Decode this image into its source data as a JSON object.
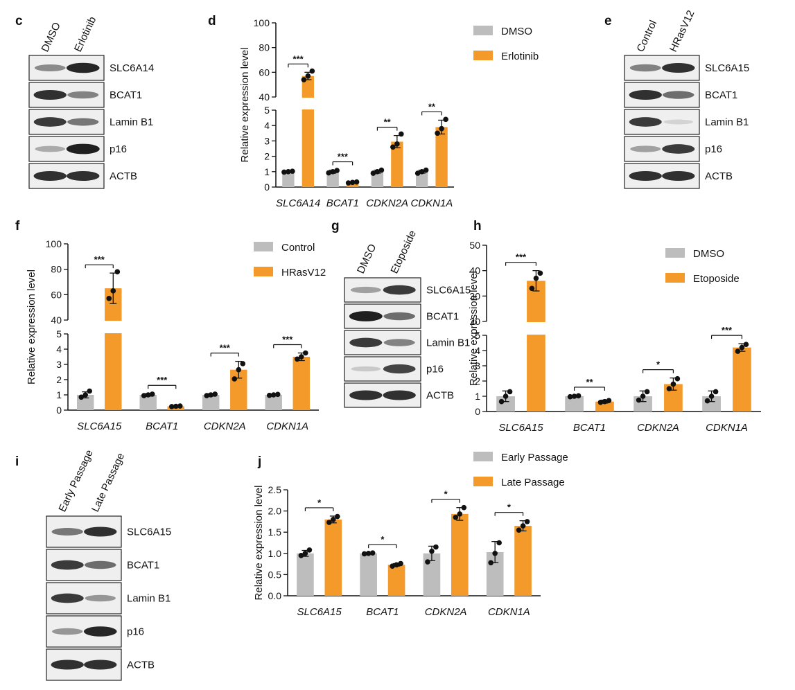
{
  "colors": {
    "control": "#bdbdbd",
    "treatment": "#f39a2b",
    "dot": "#111111",
    "axis": "#111111"
  },
  "blots": [
    {
      "letter": "c",
      "lanes": [
        "DMSO",
        "Erlotinib"
      ],
      "proteins": [
        "SLC6A14",
        "BCAT1",
        "Lamin B1",
        "p16",
        "ACTB"
      ],
      "band_intensity": [
        [
          0.45,
          0.95
        ],
        [
          0.9,
          0.5
        ],
        [
          0.85,
          0.55
        ],
        [
          0.3,
          0.98
        ],
        [
          0.9,
          0.9
        ]
      ]
    },
    {
      "letter": "e",
      "lanes": [
        "Control",
        "HRasV12"
      ],
      "proteins": [
        "SLC6A15",
        "BCAT1",
        "Lamin B1",
        "p16",
        "ACTB"
      ],
      "band_intensity": [
        [
          0.5,
          0.9
        ],
        [
          0.9,
          0.6
        ],
        [
          0.85,
          0.1
        ],
        [
          0.35,
          0.85
        ],
        [
          0.9,
          0.9
        ]
      ]
    },
    {
      "letter": "g",
      "lanes": [
        "DMSO",
        "Etoposide"
      ],
      "proteins": [
        "SLC6A15",
        "BCAT1",
        "Lamin B1",
        "p16",
        "ACTB"
      ],
      "band_intensity": [
        [
          0.35,
          0.85
        ],
        [
          0.98,
          0.6
        ],
        [
          0.85,
          0.5
        ],
        [
          0.15,
          0.8
        ],
        [
          0.9,
          0.9
        ]
      ]
    },
    {
      "letter": "i",
      "lanes": [
        "Early Passage",
        "Late Passage"
      ],
      "proteins": [
        "SLC6A15",
        "BCAT1",
        "Lamin B1",
        "p16",
        "ACTB"
      ],
      "band_intensity": [
        [
          0.55,
          0.9
        ],
        [
          0.85,
          0.6
        ],
        [
          0.85,
          0.4
        ],
        [
          0.4,
          0.95
        ],
        [
          0.9,
          0.9
        ]
      ]
    }
  ],
  "chart_data": [
    {
      "letter": "d",
      "type": "bar",
      "ylabel": "Relative expression level",
      "broken_axis": true,
      "lower_ticks": [
        0,
        1,
        2,
        3,
        4,
        5
      ],
      "upper_ticks": [
        40,
        60,
        80,
        100
      ],
      "categories": [
        "SLC6A14",
        "BCAT1",
        "CDKN2A",
        "CDKN1A"
      ],
      "series": [
        {
          "name": "DMSO",
          "values": [
            1.0,
            1.0,
            1.0,
            1.0
          ],
          "errors": [
            0.05,
            0.1,
            0.1,
            0.1
          ],
          "points": [
            [
              0.97,
              1.0,
              1.03
            ],
            [
              0.92,
              1.0,
              1.08
            ],
            [
              0.9,
              1.0,
              1.1
            ],
            [
              0.9,
              1.0,
              1.1
            ]
          ]
        },
        {
          "name": "Erlotinib",
          "values": [
            57,
            0.3,
            2.95,
            3.9
          ],
          "errors": [
            3,
            0.03,
            0.4,
            0.45
          ],
          "points": [
            [
              54,
              57,
              61
            ],
            [
              0.27,
              0.3,
              0.33
            ],
            [
              2.6,
              2.8,
              3.45
            ],
            [
              3.5,
              3.8,
              4.4
            ]
          ]
        }
      ],
      "significance": [
        "***",
        "***",
        "**",
        "**"
      ]
    },
    {
      "letter": "f",
      "type": "bar",
      "ylabel": "Relative expression level",
      "broken_axis": true,
      "lower_ticks": [
        0,
        1,
        2,
        3,
        4,
        5
      ],
      "upper_ticks": [
        40,
        60,
        80,
        100
      ],
      "categories": [
        "SLC6A15",
        "BCAT1",
        "CDKN2A",
        "CDKN1A"
      ],
      "series": [
        {
          "name": "Control",
          "values": [
            1.0,
            1.0,
            1.0,
            1.0
          ],
          "errors": [
            0.2,
            0.08,
            0.08,
            0.05
          ],
          "points": [
            [
              0.85,
              1.0,
              1.25
            ],
            [
              0.95,
              1.0,
              1.05
            ],
            [
              0.95,
              1.0,
              1.05
            ],
            [
              0.97,
              1.0,
              1.03
            ]
          ]
        },
        {
          "name": "HRasV12",
          "values": [
            65,
            0.25,
            2.65,
            3.5
          ],
          "errors": [
            12,
            0.03,
            0.55,
            0.25
          ],
          "points": [
            [
              57,
              63,
              78
            ],
            [
              0.23,
              0.25,
              0.27
            ],
            [
              2.05,
              2.65,
              3.05
            ],
            [
              3.35,
              3.5,
              3.75
            ]
          ]
        }
      ],
      "significance": [
        "***",
        "***",
        "***",
        "***"
      ]
    },
    {
      "letter": "h",
      "type": "bar",
      "ylabel": "Relative expression level",
      "broken_axis": true,
      "lower_ticks": [
        0,
        1,
        2,
        3,
        4,
        5
      ],
      "upper_ticks": [
        20,
        30,
        40,
        50
      ],
      "categories": [
        "SLC6A15",
        "BCAT1",
        "CDKN2A",
        "CDKN1A"
      ],
      "series": [
        {
          "name": "DMSO",
          "values": [
            1.0,
            1.0,
            1.0,
            1.0
          ],
          "errors": [
            0.35,
            0.05,
            0.35,
            0.35
          ],
          "points": [
            [
              0.65,
              1.0,
              1.3
            ],
            [
              0.97,
              1.0,
              1.03
            ],
            [
              0.75,
              1.0,
              1.3
            ],
            [
              0.7,
              1.0,
              1.3
            ]
          ]
        },
        {
          "name": "Etoposide",
          "values": [
            36,
            0.65,
            1.8,
            4.2
          ],
          "errors": [
            4,
            0.1,
            0.4,
            0.25
          ],
          "points": [
            [
              33,
              37,
              39
            ],
            [
              0.6,
              0.65,
              0.72
            ],
            [
              1.5,
              1.8,
              2.15
            ],
            [
              3.95,
              4.2,
              4.4
            ]
          ]
        }
      ],
      "significance": [
        "***",
        "**",
        "*",
        "***"
      ]
    },
    {
      "letter": "j",
      "type": "bar",
      "ylabel": "Relative expression level",
      "broken_axis": false,
      "ticks": [
        0.0,
        0.5,
        1.0,
        1.5,
        2.0,
        2.5
      ],
      "ylim": [
        0,
        2.5
      ],
      "tick_labels": [
        "0.0",
        "0.5",
        "1.0",
        "1.5",
        "2.0",
        "2.5"
      ],
      "categories": [
        "SLC6A15",
        "BCAT1",
        "CDKN2A",
        "CDKN1A"
      ],
      "series": [
        {
          "name": "Early Passage",
          "values": [
            1.0,
            1.0,
            1.0,
            1.03
          ],
          "errors": [
            0.07,
            0.01,
            0.17,
            0.25
          ],
          "points": [
            [
              0.95,
              1.0,
              1.08
            ],
            [
              0.99,
              1.0,
              1.01
            ],
            [
              0.8,
              1.05,
              1.15
            ],
            [
              0.78,
              1.0,
              1.25
            ]
          ]
        },
        {
          "name": "Late Passage",
          "values": [
            1.8,
            0.73,
            1.93,
            1.65
          ],
          "errors": [
            0.08,
            0.03,
            0.15,
            0.12
          ],
          "points": [
            [
              1.73,
              1.8,
              1.87
            ],
            [
              0.7,
              0.73,
              0.76
            ],
            [
              1.85,
              1.93,
              2.08
            ],
            [
              1.55,
              1.65,
              1.75
            ]
          ]
        }
      ],
      "significance": [
        "*",
        "*",
        "*",
        "*"
      ]
    }
  ]
}
